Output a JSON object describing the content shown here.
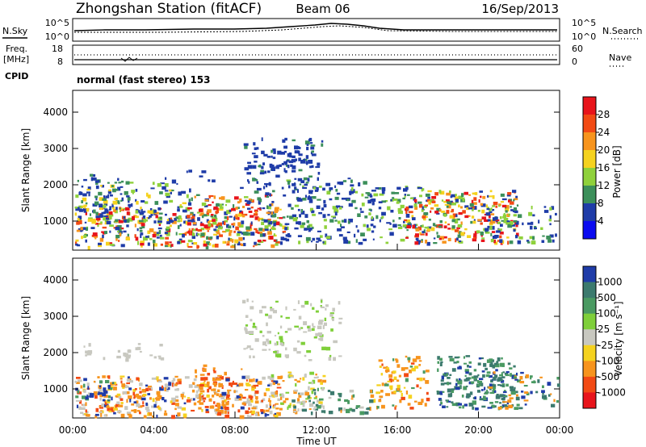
{
  "header": {
    "station": "Zhongshan Station (fitACF)",
    "beam": "Beam 06",
    "date": "16/Sep/2013"
  },
  "top_panels": {
    "nsky_label": "N.Sky",
    "nsearch_label": "N.Search",
    "count_ticks_left": [
      "10^5",
      "10^0"
    ],
    "count_ticks_right": [
      "10^5",
      "10^0"
    ],
    "freq_label_top": "Freq.",
    "freq_label_bottom": "[MHz]",
    "freq_ticks": [
      "18",
      "8"
    ],
    "nave_label": "Nave",
    "nave_ticks": [
      "60",
      "0"
    ],
    "cpid_label": "CPID",
    "cpid_value": "normal (fast stereo) 153"
  },
  "chart_data": [
    {
      "type": "heatmap",
      "panel": "power",
      "ylabel": "Slant Range [km]",
      "y_ticks": [
        "4000",
        "3000",
        "2000",
        "1000"
      ],
      "ylim": [
        200,
        4600
      ],
      "xlim": [
        "00:00",
        "24:00"
      ],
      "colorbar": {
        "label": "Power [dB]",
        "levels": [
          "28",
          "24",
          "20",
          "16",
          "12",
          "8",
          "4"
        ],
        "colors": [
          "#e8141b",
          "#f24a14",
          "#f7941d",
          "#f5d21f",
          "#8fd13b",
          "#3c8f5a",
          "#1f3ca8",
          "#0b0bf0"
        ]
      }
    },
    {
      "type": "heatmap",
      "panel": "velocity",
      "ylabel": "Slant Range [km]",
      "y_ticks": [
        "4000",
        "3000",
        "2000",
        "1000"
      ],
      "ylim": [
        200,
        4600
      ],
      "xlim": [
        "00:00",
        "24:00"
      ],
      "xlabel": "Time UT",
      "x_ticks": [
        "00:00",
        "04:00",
        "08:00",
        "12:00",
        "16:00",
        "20:00",
        "00:00"
      ],
      "colorbar": {
        "label": "Velocity [m s⁻¹]",
        "levels": [
          "1000",
          "500",
          "100",
          "25",
          "-25",
          "-100",
          "-500",
          "-1000"
        ],
        "colors": [
          "#1f3ca8",
          "#3c7a6e",
          "#4a9a62",
          "#7fcf3a",
          "#c8c8c0",
          "#f5d21f",
          "#f7941d",
          "#f24a14",
          "#e8141b"
        ]
      }
    }
  ]
}
